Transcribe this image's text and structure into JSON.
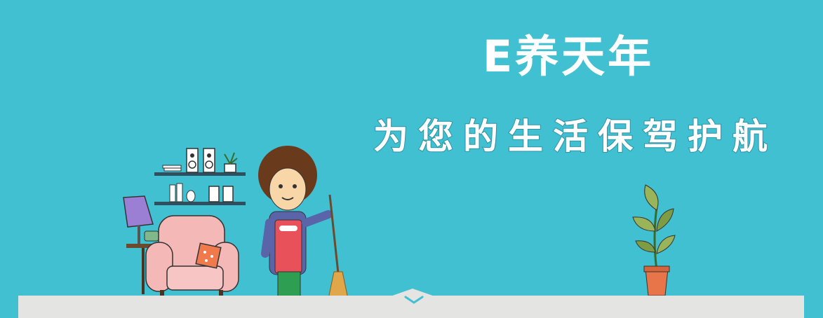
{
  "banner": {
    "title": "E养天年",
    "subtitle": "为您的生活保驾护航"
  },
  "icons": {
    "scroll_down": "chevron-down-icon",
    "illustration_housekeeper": "housekeeper-icon",
    "illustration_armchair": "armchair-icon",
    "illustration_lamp": "lamp-icon",
    "illustration_shelf": "shelf-icon",
    "illustration_plant": "potted-plant-icon",
    "illustration_broom": "broom-icon"
  },
  "colors": {
    "background": "#41c0d2",
    "text": "#ffffff",
    "floor": "#e4e4e2"
  }
}
